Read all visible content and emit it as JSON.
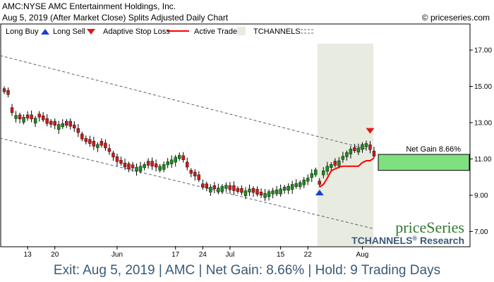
{
  "header": {
    "title": "AMC:NYSE AMC Entertainment Holdings, Inc.",
    "subtitle": "Aug 5, 2019 (After Market Close)  Splits Adjusted Daily Chart",
    "copyright": "© priceseries.com"
  },
  "legend": {
    "long_buy": "Long Buy",
    "long_sell": "Long Sell",
    "adaptive_stop": "Adaptive Stop Loss",
    "active_trade": "Active Trade",
    "tchannels": "TCHANNELS"
  },
  "watermark": {
    "brand": "priceSeries",
    "product": "TCHANNELS",
    "reg": "®",
    "suffix": " Research"
  },
  "annotation": {
    "net_gain_label": "Net Gain 8.66%"
  },
  "footer": {
    "summary": "Exit: Aug 5, 2019 | AMC | Net Gain: 8.66% | Hold: 9 Trading Days"
  },
  "colors": {
    "up": "#1e8a1e",
    "down": "#cc1a1a",
    "stop_line": "#ff0000",
    "active_zone": "#e8ebe0",
    "gain_box": "#7fe07f",
    "buy_arrow": "#1a3fd0",
    "sell_arrow": "#e01818",
    "channel": "#5a6472",
    "brand_green": "#2f7a2f",
    "brand_blue": "#3a5a78"
  },
  "chart_data": {
    "type": "candlestick",
    "ylim": [
      6.2,
      18.4
    ],
    "yticks": [
      "7.00",
      "9.00",
      "11.00",
      "13.00",
      "15.00",
      "17.00"
    ],
    "xticks": [
      "13",
      "20",
      "Jun",
      "17",
      "24",
      "Jul",
      "15",
      "22",
      "Aug"
    ],
    "xtick_index": [
      6,
      13,
      29,
      44,
      51,
      58,
      71,
      78,
      92
    ],
    "num_bars": 96,
    "active_trade_range": [
      81,
      95
    ],
    "buy_signal": {
      "index": 81,
      "price": 9.15
    },
    "sell_signal": {
      "index": 94,
      "price": 12.55
    },
    "exit_price": 11.15,
    "net_gain_range": [
      10.37,
      11.25
    ],
    "channel_upper": [
      [
        0,
        16.7
      ],
      [
        95,
        11.45
      ]
    ],
    "channel_lower": [
      [
        0,
        12.15
      ],
      [
        95,
        7.15
      ]
    ],
    "adaptive_stop": [
      [
        81,
        9.45
      ],
      [
        82,
        9.6
      ],
      [
        83,
        9.95
      ],
      [
        84,
        10.35
      ],
      [
        85,
        10.45
      ],
      [
        86,
        10.55
      ],
      [
        87,
        10.6
      ],
      [
        88,
        10.6
      ],
      [
        89,
        10.6
      ],
      [
        90,
        10.6
      ],
      [
        91,
        10.6
      ],
      [
        92,
        10.8
      ],
      [
        93,
        10.9
      ],
      [
        94,
        10.9
      ],
      [
        95,
        11.05
      ]
    ],
    "close": [
      14.7,
      14.55,
      13.55,
      13.4,
      13.2,
      13.3,
      13.25,
      13.2,
      13.25,
      13.3,
      13.15,
      12.95,
      12.9,
      12.85,
      12.9,
      12.95,
      12.85,
      12.8,
      12.7,
      12.45,
      12.1,
      11.95,
      11.85,
      11.7,
      11.8,
      11.75,
      11.6,
      11.4,
      11.1,
      10.85,
      10.75,
      10.55,
      10.45,
      10.5,
      10.55,
      10.6,
      10.7,
      10.65,
      10.6,
      10.55,
      10.6,
      10.7,
      10.85,
      10.95,
      11.1,
      11.2,
      10.95,
      10.55,
      10.2,
      10.05,
      9.85,
      9.45,
      9.4,
      9.45,
      9.35,
      9.4,
      9.5,
      9.55,
      9.3,
      9.25,
      9.2,
      9.15,
      9.25,
      9.35,
      9.15,
      9.05,
      9.0,
      9.1,
      9.2,
      9.25,
      9.3,
      9.35,
      9.45,
      9.5,
      9.6,
      9.65,
      9.7,
      9.85,
      9.95,
      10.2,
      10.4,
      9.6,
      10.35,
      10.6,
      10.7,
      10.65,
      10.9,
      11.15,
      11.35,
      11.55,
      11.45,
      11.6,
      11.8,
      11.85,
      11.55,
      11.15
    ],
    "up_days": [
      3,
      5,
      8,
      14,
      15,
      24,
      34,
      35,
      36,
      40,
      41,
      42,
      43,
      44,
      45,
      53,
      55,
      56,
      57,
      62,
      63,
      67,
      68,
      69,
      70,
      71,
      72,
      73,
      74,
      75,
      76,
      77,
      78,
      79,
      80,
      82,
      83,
      84,
      86,
      87,
      88,
      89,
      91,
      92,
      93
    ]
  }
}
